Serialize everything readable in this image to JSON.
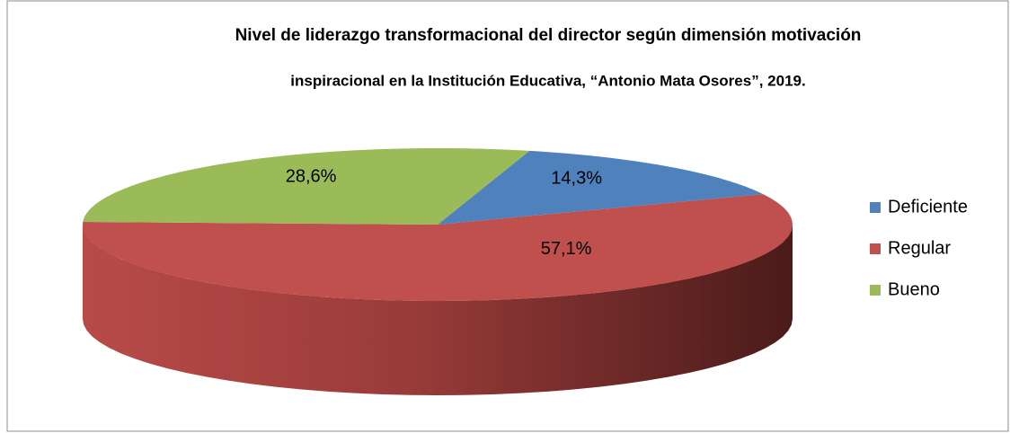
{
  "chart_data": {
    "type": "pie3d",
    "title": [
      "Nivel de liderazgo transformacional del director según dimensión motivación",
      "inspiracional en la Institución Educativa, “Antonio Mata Osores”, 2019."
    ],
    "categories": [
      "Deficiente",
      "Regular",
      "Bueno"
    ],
    "values": [
      14.3,
      57.1,
      28.6
    ],
    "value_labels": [
      "14,3%",
      "57,1%",
      "28,6%"
    ],
    "colors": [
      "#4f81bd",
      "#c0504d",
      "#9bbb59"
    ],
    "legend": "right"
  }
}
